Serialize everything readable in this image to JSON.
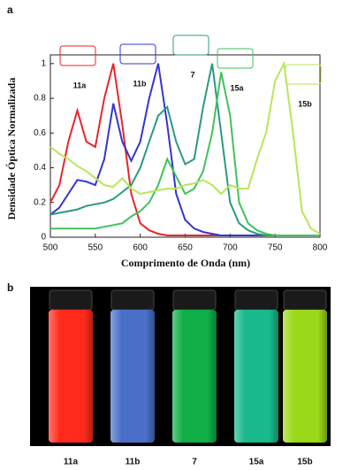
{
  "panel_a": "a",
  "panel_b": "b",
  "chart_data": {
    "type": "line",
    "xlabel": "Comprimento de Onda (nm)",
    "ylabel": "Densidade Óptica Normalizada",
    "xlim": [
      500,
      800
    ],
    "ylim": [
      0,
      1.05
    ],
    "xticks": [
      500,
      550,
      600,
      650,
      700,
      750,
      800
    ],
    "yticks": [
      0,
      0.2,
      0.4,
      0.6,
      0.8,
      1
    ],
    "x": [
      500,
      510,
      520,
      530,
      540,
      550,
      560,
      570,
      580,
      590,
      600,
      610,
      620,
      630,
      640,
      650,
      660,
      670,
      680,
      690,
      700,
      710,
      720,
      730,
      740,
      750,
      760,
      770,
      780,
      790,
      800
    ],
    "series": [
      {
        "name": "11a",
        "color": "#e8262a",
        "values": [
          0.2,
          0.3,
          0.55,
          0.73,
          0.55,
          0.52,
          0.8,
          1.0,
          0.65,
          0.25,
          0.08,
          0.04,
          0.02,
          0.01,
          0.01,
          0.01,
          0.01,
          0.01,
          0.01,
          0.01,
          0.01,
          null,
          null,
          null,
          null,
          null,
          null,
          null,
          null,
          null,
          null
        ]
      },
      {
        "name": "11b",
        "color": "#3535d0",
        "values": [
          0.13,
          0.17,
          0.25,
          0.33,
          0.32,
          0.3,
          0.45,
          0.77,
          0.55,
          0.44,
          0.55,
          0.8,
          1.0,
          0.65,
          0.25,
          0.1,
          0.05,
          0.03,
          0.02,
          0.01,
          0.01,
          0.01,
          0.01,
          0.01,
          0.01,
          0.01,
          0.01,
          null,
          null,
          null,
          null
        ]
      },
      {
        "name": "7",
        "color": "#2a9a82",
        "values": [
          0.13,
          0.14,
          0.15,
          0.16,
          0.18,
          0.19,
          0.2,
          0.22,
          0.26,
          0.3,
          0.4,
          0.55,
          0.7,
          0.75,
          0.55,
          0.42,
          0.45,
          0.75,
          1.0,
          0.6,
          0.2,
          0.08,
          0.04,
          0.02,
          0.01,
          0.01,
          0.01,
          0.01,
          0.01,
          0.01,
          0.01
        ]
      },
      {
        "name": "15a",
        "color": "#3fc25b",
        "values": [
          0.05,
          0.05,
          0.05,
          0.05,
          0.05,
          0.05,
          0.06,
          0.07,
          0.08,
          0.12,
          0.15,
          0.2,
          0.3,
          0.45,
          0.35,
          0.25,
          0.28,
          0.38,
          0.6,
          0.95,
          0.7,
          0.2,
          0.08,
          0.04,
          0.02,
          0.01,
          0.01,
          0.01,
          0.01,
          0.01,
          0.01
        ]
      },
      {
        "name": "15b",
        "color": "#b8e65a",
        "values": [
          0.52,
          0.48,
          0.45,
          0.41,
          0.38,
          0.34,
          0.3,
          0.29,
          0.34,
          0.28,
          0.25,
          0.26,
          0.27,
          0.28,
          0.28,
          0.3,
          0.31,
          0.33,
          0.3,
          0.25,
          0.3,
          0.28,
          0.28,
          0.45,
          0.6,
          0.9,
          1.0,
          0.6,
          0.15,
          0.05,
          0.02
        ]
      }
    ]
  },
  "vials": [
    "11a",
    "11b",
    "7",
    "15a",
    "15b"
  ]
}
